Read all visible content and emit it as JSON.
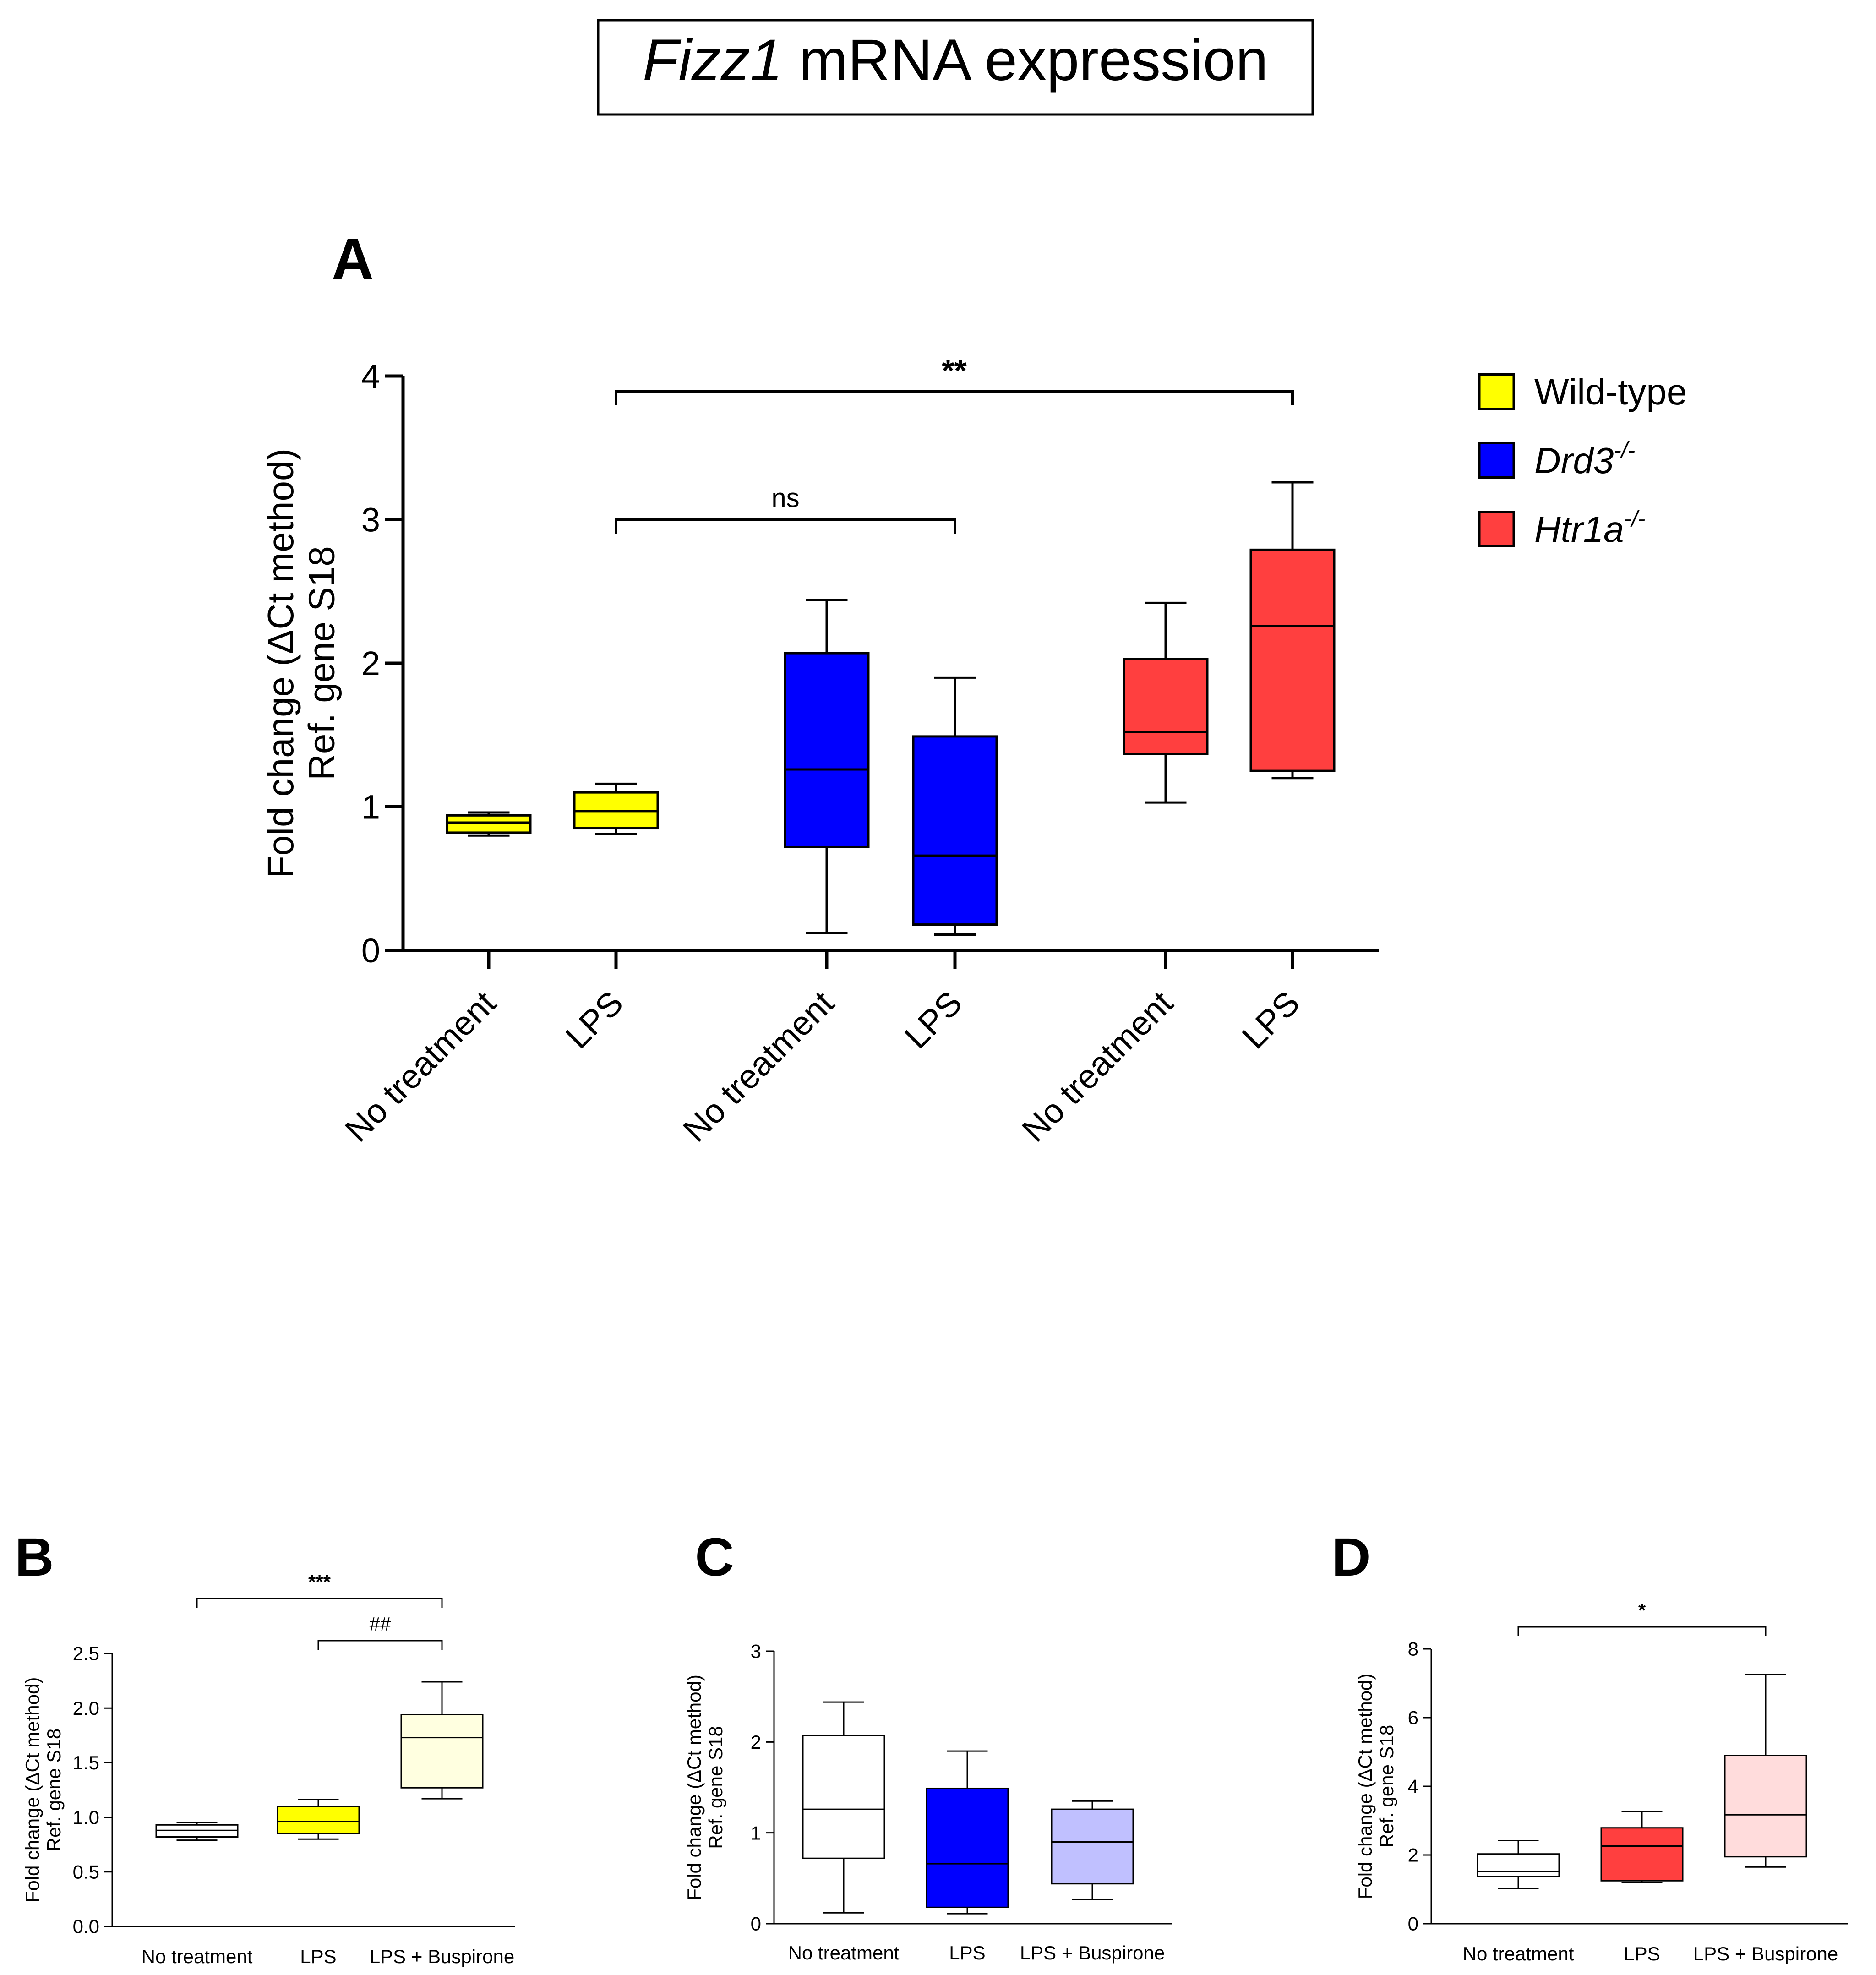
{
  "figure": {
    "title_italic": "Fizz1",
    "title_rest": " mRNA expression"
  },
  "chart_data": [
    {
      "panel": "A",
      "type": "box",
      "ylabel_line1": "Fold change (ΔCt method)",
      "ylabel_line2": "Ref. gene S18",
      "ylim": [
        0,
        4
      ],
      "yticks": [
        "0",
        "1",
        "2",
        "3",
        "4"
      ],
      "categories": [
        "No treatment",
        "LPS",
        "No treatment",
        "LPS",
        "No treatment",
        "LPS"
      ],
      "boxes": [
        {
          "group": "Wild-type",
          "color": "#ffff00",
          "min": 0.8,
          "q1": 0.82,
          "median": 0.89,
          "q3": 0.94,
          "max": 0.96
        },
        {
          "group": "Wild-type",
          "color": "#ffff00",
          "min": 0.81,
          "q1": 0.85,
          "median": 0.97,
          "q3": 1.1,
          "max": 1.16
        },
        {
          "group": "Drd3-/-",
          "color": "#0000ff",
          "min": 0.12,
          "q1": 0.72,
          "median": 1.26,
          "q3": 2.07,
          "max": 2.44
        },
        {
          "group": "Drd3-/-",
          "color": "#0000ff",
          "min": 0.11,
          "q1": 0.18,
          "median": 0.66,
          "q3": 1.49,
          "max": 1.9
        },
        {
          "group": "Htr1a-/-",
          "color": "#ff3f3f",
          "min": 1.03,
          "q1": 1.37,
          "median": 1.52,
          "q3": 2.03,
          "max": 2.42
        },
        {
          "group": "Htr1a-/-",
          "color": "#ff3f3f",
          "min": 1.2,
          "q1": 1.25,
          "median": 2.26,
          "q3": 2.79,
          "max": 3.26
        }
      ],
      "significance": [
        {
          "from": 1,
          "to": 3,
          "label": "ns"
        },
        {
          "from": 1,
          "to": 5,
          "label": "**"
        }
      ],
      "legend": [
        {
          "label": "Wild-type",
          "italic": false,
          "sup": "",
          "color": "#ffff00"
        },
        {
          "label": "Drd3",
          "italic": true,
          "sup": "-/-",
          "color": "#0000ff"
        },
        {
          "label": "Htr1a",
          "italic": true,
          "sup": "-/-",
          "color": "#ff3f3f"
        }
      ]
    },
    {
      "panel": "B",
      "type": "box",
      "ylabel_line1": "Fold change (ΔCt method)",
      "ylabel_line2": "Ref. gene S18",
      "ylim": [
        0,
        2.5
      ],
      "yticks": [
        "0.0",
        "0.5",
        "1.0",
        "1.5",
        "2.0",
        "2.5"
      ],
      "categories": [
        "No treatment",
        "LPS",
        "LPS + Buspirone"
      ],
      "boxes": [
        {
          "color": "#ffffff",
          "min": 0.79,
          "q1": 0.82,
          "median": 0.88,
          "q3": 0.93,
          "max": 0.95
        },
        {
          "color": "#ffff00",
          "min": 0.8,
          "q1": 0.85,
          "median": 0.96,
          "q3": 1.1,
          "max": 1.16
        },
        {
          "color": "#ffffe0",
          "min": 1.17,
          "q1": 1.27,
          "median": 1.73,
          "q3": 1.94,
          "max": 2.24
        }
      ],
      "significance": [
        {
          "from": 0,
          "to": 2,
          "label": "***"
        },
        {
          "from": 1,
          "to": 2,
          "label": "##"
        }
      ]
    },
    {
      "panel": "C",
      "type": "box",
      "ylabel_line1": "Fold change (ΔCt method)",
      "ylabel_line2": "Ref. gene S18",
      "ylim": [
        0,
        3
      ],
      "yticks": [
        "0",
        "1",
        "2",
        "3"
      ],
      "categories": [
        "No treatment",
        "LPS",
        "LPS + Buspirone"
      ],
      "boxes": [
        {
          "color": "#ffffff",
          "min": 0.12,
          "q1": 0.72,
          "median": 1.26,
          "q3": 2.07,
          "max": 2.44
        },
        {
          "color": "#0000ff",
          "min": 0.11,
          "q1": 0.18,
          "median": 0.66,
          "q3": 1.49,
          "max": 1.9
        },
        {
          "color": "#c0c0ff",
          "min": 0.27,
          "q1": 0.44,
          "median": 0.9,
          "q3": 1.26,
          "max": 1.35
        }
      ],
      "significance": []
    },
    {
      "panel": "D",
      "type": "box",
      "ylabel_line1": "Fold change (ΔCt method)",
      "ylabel_line2": "Ref. gene S18",
      "ylim": [
        0,
        8
      ],
      "yticks": [
        "0",
        "2",
        "4",
        "6",
        "8"
      ],
      "categories": [
        "No treatment",
        "LPS",
        "LPS + Buspirone"
      ],
      "boxes": [
        {
          "color": "#ffffff",
          "min": 1.03,
          "q1": 1.37,
          "median": 1.52,
          "q3": 2.03,
          "max": 2.42
        },
        {
          "color": "#ff3f3f",
          "min": 1.2,
          "q1": 1.25,
          "median": 2.26,
          "q3": 2.79,
          "max": 3.26
        },
        {
          "color": "#ffdcdc",
          "min": 1.65,
          "q1": 1.95,
          "median": 3.17,
          "q3": 4.9,
          "max": 7.26
        }
      ],
      "significance": [
        {
          "from": 0,
          "to": 2,
          "label": "*"
        }
      ]
    }
  ]
}
